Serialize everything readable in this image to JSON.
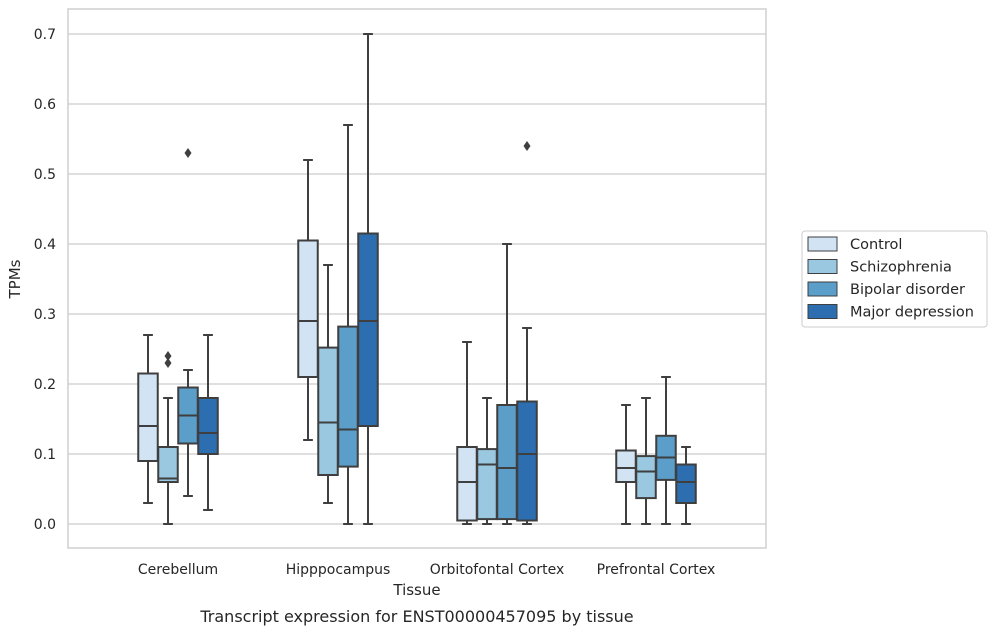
{
  "caption": "Transcript expression for ENST00000457095 by tissue",
  "chart_data": {
    "type": "box",
    "xlabel": "Tissue",
    "ylabel": "TPMs",
    "ylim": [
      -0.035,
      0.735
    ],
    "yticks": [
      0.0,
      0.1,
      0.2,
      0.3,
      0.4,
      0.5,
      0.6,
      0.7
    ],
    "ytick_labels": [
      "0.0",
      "0.1",
      "0.2",
      "0.3",
      "0.4",
      "0.5",
      "0.6",
      "0.7"
    ],
    "grid": "horizontal",
    "legend_position": "right",
    "categories": [
      "Cerebellum",
      "Hipppocampus",
      "Orbitofontal Cortex",
      "Prefrontal Cortex"
    ],
    "series": [
      {
        "name": "Control",
        "color": "#d2e3f3",
        "boxes": [
          {
            "whislo": 0.03,
            "q1": 0.09,
            "med": 0.14,
            "q3": 0.215,
            "whishi": 0.27,
            "fliers": []
          },
          {
            "whislo": 0.12,
            "q1": 0.21,
            "med": 0.29,
            "q3": 0.405,
            "whishi": 0.52,
            "fliers": []
          },
          {
            "whislo": 0.0,
            "q1": 0.005,
            "med": 0.06,
            "q3": 0.11,
            "whishi": 0.26,
            "fliers": []
          },
          {
            "whislo": 0.0,
            "q1": 0.06,
            "med": 0.08,
            "q3": 0.105,
            "whishi": 0.17,
            "fliers": []
          }
        ]
      },
      {
        "name": "Schizophrenia",
        "color": "#9ac8e0",
        "boxes": [
          {
            "whislo": 0.0,
            "q1": 0.06,
            "med": 0.065,
            "q3": 0.11,
            "whishi": 0.18,
            "fliers": [
              0.23,
              0.24
            ]
          },
          {
            "whislo": 0.03,
            "q1": 0.07,
            "med": 0.145,
            "q3": 0.252,
            "whishi": 0.37,
            "fliers": []
          },
          {
            "whislo": 0.0,
            "q1": 0.007,
            "med": 0.085,
            "q3": 0.107,
            "whishi": 0.18,
            "fliers": []
          },
          {
            "whislo": 0.0,
            "q1": 0.037,
            "med": 0.075,
            "q3": 0.097,
            "whishi": 0.18,
            "fliers": []
          }
        ]
      },
      {
        "name": "Bipolar disorder",
        "color": "#5a9ec9",
        "boxes": [
          {
            "whislo": 0.04,
            "q1": 0.115,
            "med": 0.155,
            "q3": 0.195,
            "whishi": 0.22,
            "fliers": [
              0.53
            ]
          },
          {
            "whislo": 0.0,
            "q1": 0.082,
            "med": 0.135,
            "q3": 0.282,
            "whishi": 0.57,
            "fliers": []
          },
          {
            "whislo": 0.0,
            "q1": 0.007,
            "med": 0.08,
            "q3": 0.17,
            "whishi": 0.4,
            "fliers": []
          },
          {
            "whislo": 0.0,
            "q1": 0.063,
            "med": 0.095,
            "q3": 0.126,
            "whishi": 0.21,
            "fliers": []
          }
        ]
      },
      {
        "name": "Major depression",
        "color": "#2d6eb0",
        "boxes": [
          {
            "whislo": 0.02,
            "q1": 0.1,
            "med": 0.13,
            "q3": 0.18,
            "whishi": 0.27,
            "fliers": []
          },
          {
            "whislo": 0.0,
            "q1": 0.14,
            "med": 0.29,
            "q3": 0.415,
            "whishi": 0.7,
            "fliers": []
          },
          {
            "whislo": 0.0,
            "q1": 0.005,
            "med": 0.1,
            "q3": 0.175,
            "whishi": 0.28,
            "fliers": [
              0.54
            ]
          },
          {
            "whislo": 0.0,
            "q1": 0.03,
            "med": 0.06,
            "q3": 0.085,
            "whishi": 0.11,
            "fliers": []
          }
        ]
      }
    ]
  }
}
